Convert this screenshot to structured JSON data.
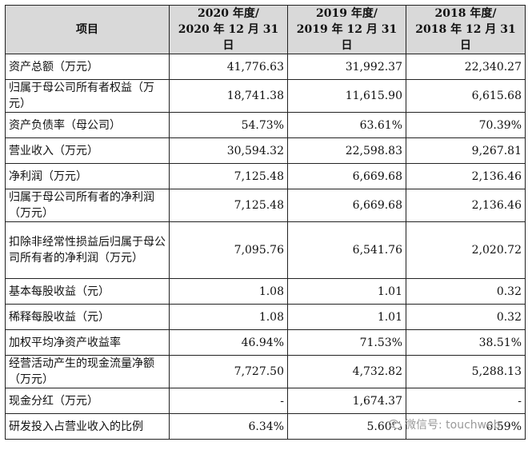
{
  "header": {
    "item_label": "项目",
    "col1_line1": "2020 年度/",
    "col1_line2": "2020 年 12 月 31 日",
    "col2_line1": "2019 年度/",
    "col2_line2": "2019 年 12 月 31 日",
    "col3_line1": "2018 年度/",
    "col3_line2": "2018 年 12 月 31 日"
  },
  "rows": [
    {
      "label": "资产总额（万元）",
      "v2020": "41,776.63",
      "v2019": "31,992.37",
      "v2018": "22,340.27"
    },
    {
      "label": "归属于母公司所有者权益（万元）",
      "v2020": "18,741.38",
      "v2019": "11,615.90",
      "v2018": "6,615.68"
    },
    {
      "label": "资产负债率（母公司）",
      "v2020": "54.73%",
      "v2019": "63.61%",
      "v2018": "70.39%"
    },
    {
      "label": "营业收入（万元）",
      "v2020": "30,594.32",
      "v2019": "22,598.83",
      "v2018": "9,267.81"
    },
    {
      "label": "净利润（万元）",
      "v2020": "7,125.48",
      "v2019": "6,669.68",
      "v2018": "2,136.46"
    },
    {
      "label": "归属于母公司所有者的净利润（万元）",
      "v2020": "7,125.48",
      "v2019": "6,669.68",
      "v2018": "2,136.46"
    },
    {
      "label": "扣除非经常性损益后归属于母公司所有者的净利润（万元）",
      "v2020": "7,095.76",
      "v2019": "6,541.76",
      "v2018": "2,020.72"
    },
    {
      "label": "基本每股收益（元）",
      "v2020": "1.08",
      "v2019": "1.01",
      "v2018": "0.32"
    },
    {
      "label": "稀释每股收益（元）",
      "v2020": "1.08",
      "v2019": "1.01",
      "v2018": "0.32"
    },
    {
      "label": "加权平均净资产收益率",
      "v2020": "46.94%",
      "v2019": "71.53%",
      "v2018": "38.51%"
    },
    {
      "label": "经营活动产生的现金流量净额（万元）",
      "v2020": "7,727.50",
      "v2019": "4,732.82",
      "v2018": "5,288.13"
    },
    {
      "label": "现金分红（万元）",
      "v2020": "-",
      "v2019": "1,674.37",
      "v2018": "-"
    },
    {
      "label": "研发投入占营业收入的比例",
      "v2020": "6.34%",
      "v2019": "5.60%",
      "v2018": "6.59%"
    }
  ],
  "watermark": {
    "text": "微信号: touchweb",
    "icon": "wechat-icon"
  }
}
